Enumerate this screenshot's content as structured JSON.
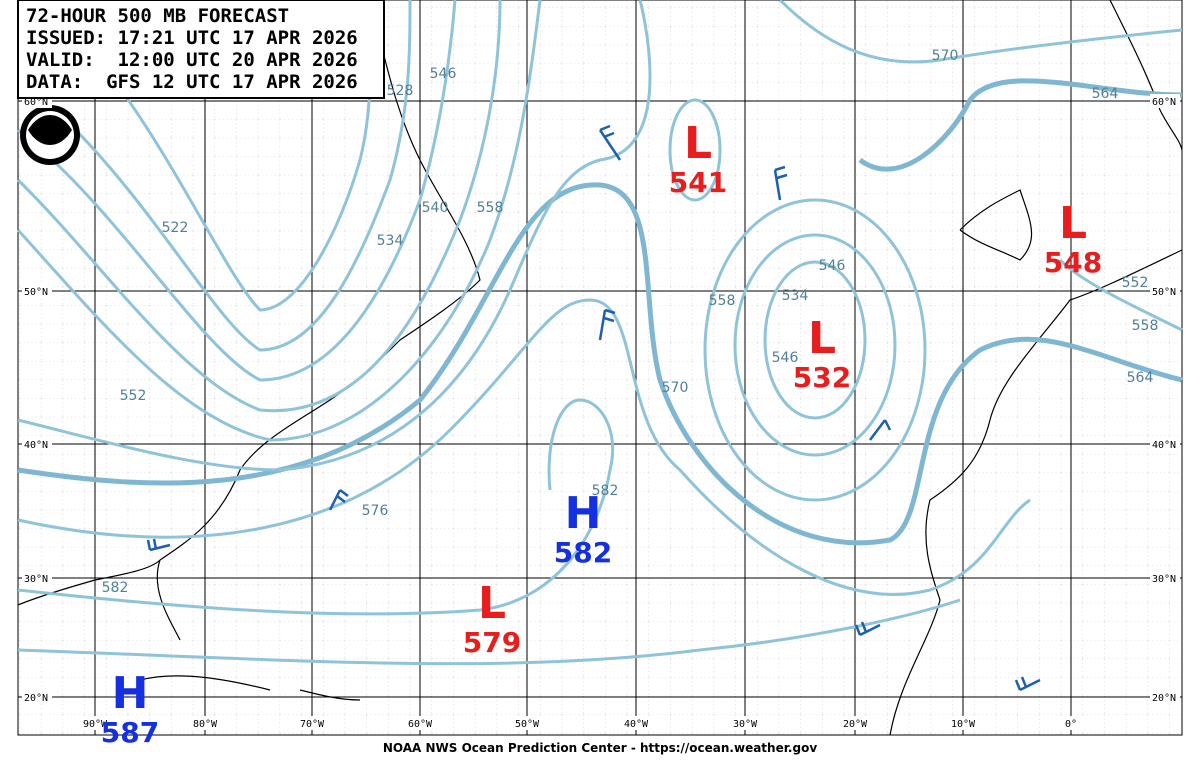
{
  "header": {
    "lines": [
      "72-HOUR 500 MB FORECAST",
      "ISSUED: 17:21 UTC 17 APR 2026",
      "VALID:  12:00 UTC 20 APR 2026",
      "DATA:  GFS 12 UTC 17 APR 2026"
    ]
  },
  "latitudes": [
    "60°N",
    "50°N",
    "40°N",
    "30°N",
    "20°N"
  ],
  "longitudes": [
    "90°W",
    "80°W",
    "70°W",
    "60°W",
    "50°W",
    "40°W",
    "30°W",
    "20°W",
    "10°W",
    "0°"
  ],
  "centers": [
    {
      "kind": "L",
      "value": 541
    },
    {
      "kind": "L",
      "value": 532
    },
    {
      "kind": "L",
      "value": 548
    },
    {
      "kind": "L",
      "value": 579
    },
    {
      "kind": "H",
      "value": 582
    },
    {
      "kind": "H",
      "value": 587
    }
  ],
  "contour_labels": [
    570,
    564,
    546,
    528,
    540,
    558,
    534,
    522,
    552,
    576,
    582,
    582,
    570,
    558,
    546,
    534,
    546,
    564,
    552,
    558
  ],
  "footer": "NOAA NWS Ocean Prediction Center - https://ocean.weather.gov"
}
